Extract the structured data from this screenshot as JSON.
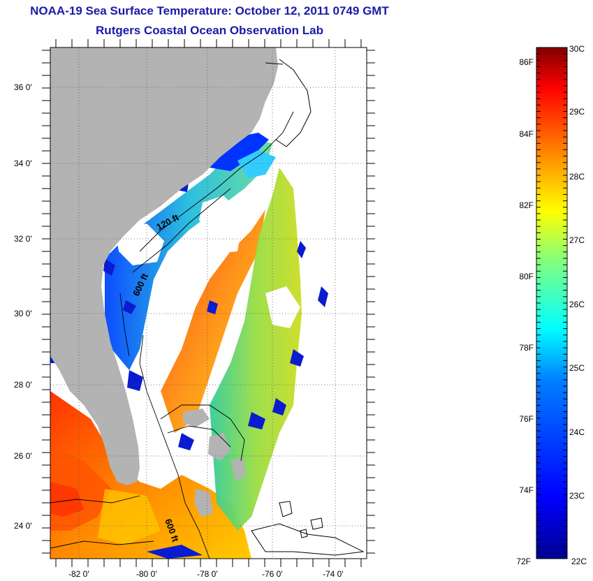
{
  "header": {
    "title": "NOAA-19 Sea Surface Temperature:  October 12, 2011 0749 GMT",
    "subtitle": "Rutgers Coastal Ocean Observation Lab"
  },
  "map": {
    "region": "Southeast US Atlantic coast",
    "lat_labels": [
      "36 0'",
      "34 0'",
      "32 0'",
      "30 0'",
      "28 0'",
      "26 0'",
      "24 0'"
    ],
    "lon_labels": [
      "-82 0'",
      "-80 0'",
      "-78 0'",
      "-76 0'",
      "-74 0'"
    ],
    "contour_labels": [
      "120 ft",
      "600 ft",
      "600 ft"
    ],
    "land_color": "#b3b3b3",
    "no_data_color": "#ffffff",
    "gridlines": "dotted"
  },
  "colorbar": {
    "celsius_labels": [
      "30C",
      "29C",
      "28C",
      "27C",
      "26C",
      "25C",
      "24C",
      "23C",
      "22C"
    ],
    "fahrenheit_labels": [
      "86F",
      "84F",
      "82F",
      "80F",
      "78F",
      "76F",
      "74F",
      "72F"
    ],
    "min_c": 22,
    "max_c": 30,
    "colormap": "jet",
    "colors": [
      "#00008f",
      "#0000ff",
      "#0080ff",
      "#00ffff",
      "#80ff80",
      "#ffff00",
      "#ff8000",
      "#ff0000",
      "#800000"
    ]
  }
}
